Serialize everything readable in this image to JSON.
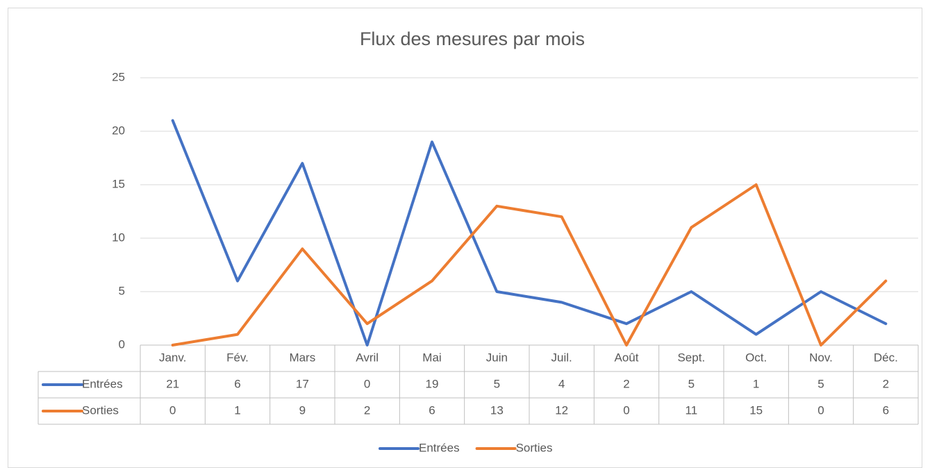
{
  "chart_data": {
    "type": "line",
    "title": "Flux des mesures par mois",
    "categories": [
      "Janv.",
      "Fév.",
      "Mars",
      "Avril",
      "Mai",
      "Juin",
      "Juil.",
      "Août",
      "Sept.",
      "Oct.",
      "Nov.",
      "Déc."
    ],
    "series": [
      {
        "name": "Entrées",
        "color": "#4472c4",
        "values": [
          21,
          6,
          17,
          0,
          19,
          5,
          4,
          2,
          5,
          1,
          5,
          2
        ]
      },
      {
        "name": "Sorties",
        "color": "#ed7d31",
        "values": [
          0,
          1,
          9,
          2,
          6,
          13,
          12,
          0,
          11,
          15,
          0,
          6
        ]
      }
    ],
    "ylim": [
      0,
      25
    ],
    "yticks": [
      0,
      5,
      10,
      15,
      20,
      25
    ],
    "grid": true,
    "legend": "bottom",
    "data_table": true
  }
}
